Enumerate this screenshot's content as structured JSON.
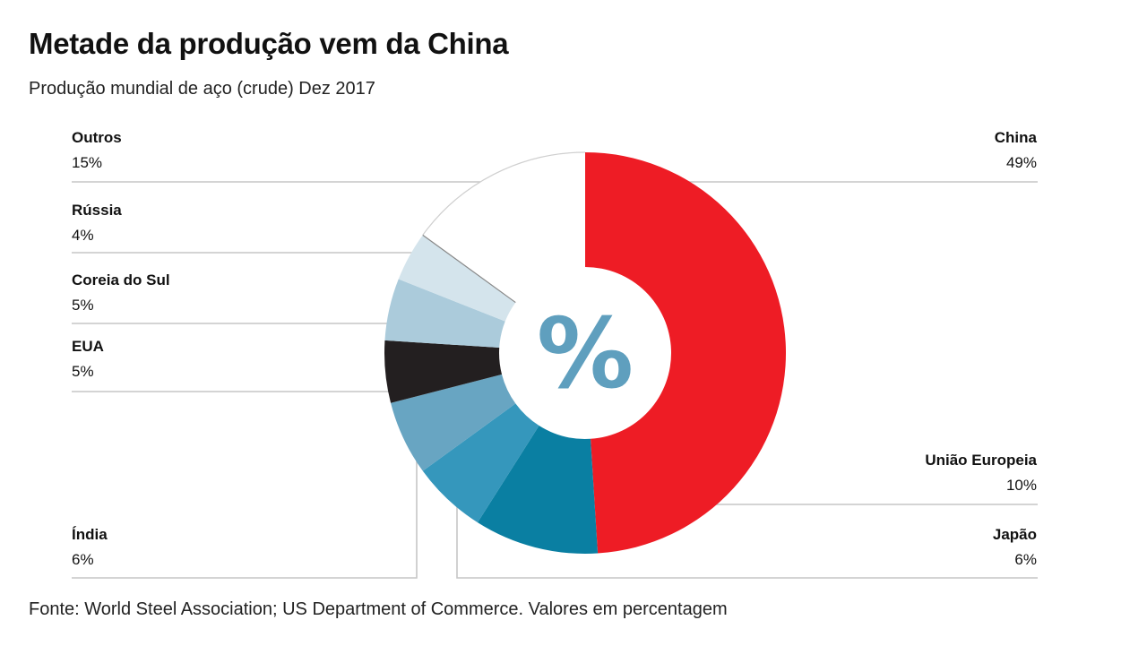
{
  "title": "Metade da produção vem da China",
  "subtitle": "Produção mundial de aço (crude) Dez 2017",
  "source": "Fonte: World Steel Association; US Department of Commerce. Valores em percentagem",
  "center_symbol": "%",
  "chart_data": {
    "type": "pie",
    "title": "Metade da produção vem da China",
    "subtitle": "Produção mundial de aço (crude) Dez 2017",
    "style": "donut",
    "direction": "clockwise from top",
    "slices": [
      {
        "label": "China",
        "value": 49,
        "display": "49%",
        "color": "#ee1c25"
      },
      {
        "label": "União Europeia",
        "value": 10,
        "display": "10%",
        "color": "#0a7fa2"
      },
      {
        "label": "Japão",
        "value": 6,
        "display": "6%",
        "color": "#3597bc"
      },
      {
        "label": "Índia",
        "value": 6,
        "display": "6%",
        "color": "#68a5c2"
      },
      {
        "label": "EUA",
        "value": 5,
        "display": "5%",
        "color": "#231f20"
      },
      {
        "label": "Coreia do Sul",
        "value": 5,
        "display": "5%",
        "color": "#abcbdb"
      },
      {
        "label": "Rússia",
        "value": 4,
        "display": "4%",
        "color": "#d4e4ec"
      },
      {
        "label": "Outros",
        "value": 15,
        "display": "15%",
        "color": "#ffffff"
      }
    ]
  }
}
